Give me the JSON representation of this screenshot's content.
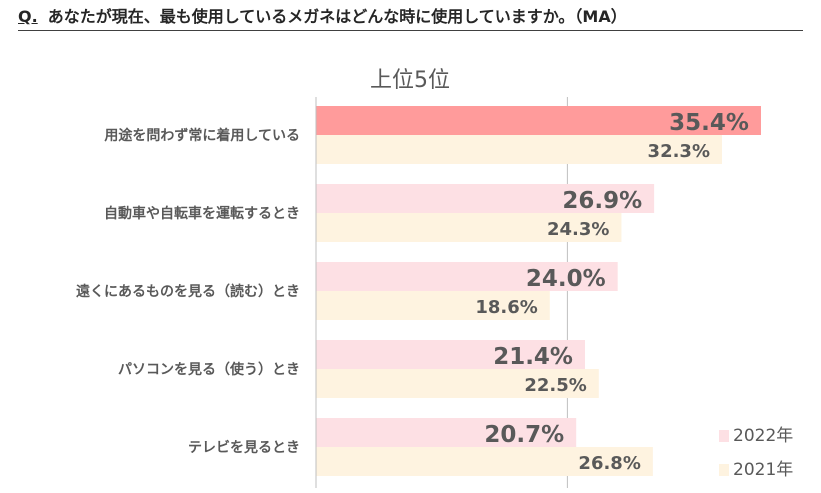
{
  "header": {
    "q_mark": "Q.",
    "question": "あなたが現在、最も使用しているメガネはどんな時に使用していますか。（MA）"
  },
  "chart_data": {
    "type": "bar",
    "orientation": "horizontal",
    "title": "上位5位",
    "categories": [
      "用途を問わず常に着用している",
      "自動車や自転車を運転するとき",
      "遠くにあるものを見る（読む）とき",
      "パソコンを見る（使う）とき",
      "テレビを見るとき"
    ],
    "series": [
      {
        "name": "2022年",
        "values": [
          35.4,
          26.9,
          24.0,
          21.4,
          20.7
        ],
        "labels": [
          "35.4%",
          "26.9%",
          "24.0%",
          "21.4%",
          "20.7%"
        ]
      },
      {
        "name": "2021年",
        "values": [
          32.3,
          24.3,
          18.6,
          22.5,
          26.8
        ],
        "labels": [
          "32.3%",
          "24.3%",
          "18.6%",
          "22.5%",
          "26.8%"
        ]
      }
    ],
    "xlim": [
      0,
      40
    ],
    "grid": "vertical at 20",
    "legend_position": "bottom-right",
    "colors": {
      "highlight_2022": "#FF9B9B",
      "bar_2022": "#FDE0E4",
      "bar_2021": "#FEF3E0",
      "axis": "#BFBFBF",
      "text": "#595959"
    }
  }
}
